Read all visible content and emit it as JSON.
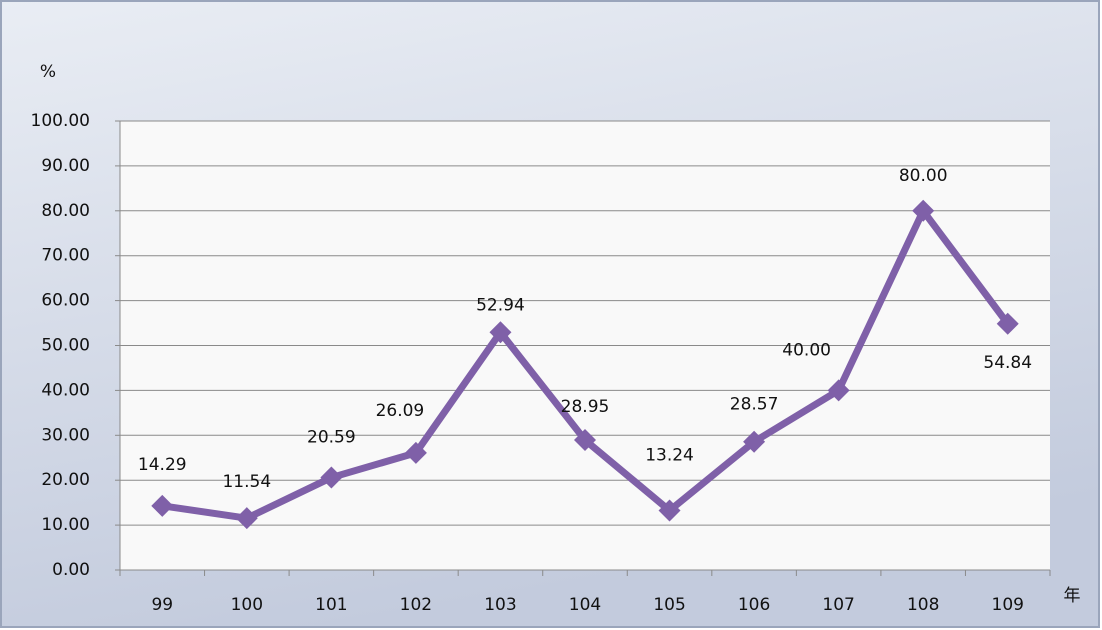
{
  "chart_data": {
    "type": "line",
    "y_axis_label": "%",
    "x_axis_label": "年",
    "categories": [
      "99",
      "100",
      "101",
      "102",
      "103",
      "104",
      "105",
      "106",
      "107",
      "108",
      "109"
    ],
    "series": [
      {
        "color": "#7f60a8",
        "values": [
          14.29,
          11.54,
          20.59,
          26.09,
          52.94,
          28.95,
          13.24,
          28.57,
          40.0,
          80.0,
          54.84
        ],
        "value_labels": [
          "14.29",
          "11.54",
          "20.59",
          "26.09",
          "52.94",
          "28.95",
          "13.24",
          "28.57",
          "40.00",
          "80.00",
          "54.84"
        ]
      }
    ],
    "ylim": [
      0,
      100
    ],
    "yticks": [
      {
        "value": 0,
        "label": "0.00"
      },
      {
        "value": 10,
        "label": "10.00"
      },
      {
        "value": 20,
        "label": "20.00"
      },
      {
        "value": 30,
        "label": "30.00"
      },
      {
        "value": 40,
        "label": "40.00"
      },
      {
        "value": 50,
        "label": "50.00"
      },
      {
        "value": 60,
        "label": "60.00"
      },
      {
        "value": 70,
        "label": "70.00"
      },
      {
        "value": 80,
        "label": "80.00"
      },
      {
        "value": 90,
        "label": "90.00"
      },
      {
        "value": 100,
        "label": "100.00"
      }
    ],
    "grid": true
  }
}
